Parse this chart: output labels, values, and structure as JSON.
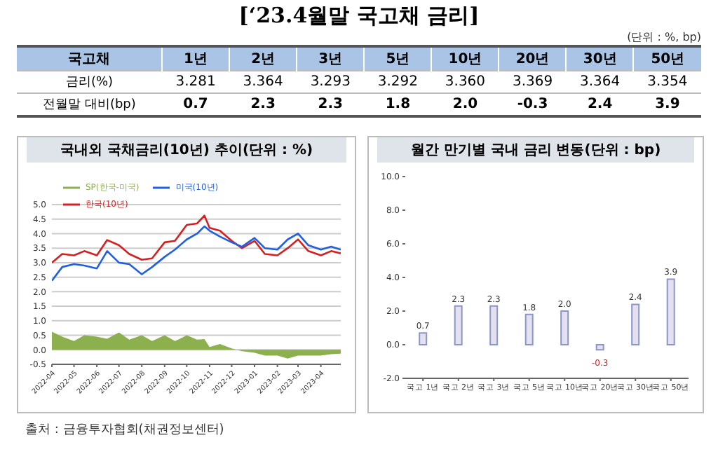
{
  "chart_data": [
    {
      "type": "other",
      "title": "[‘23.4월말 국고채 금리]",
      "subtitle": "(단위 : %, bp)",
      "xlabel": "국고채",
      "categories": [
        "1년",
        "2년",
        "3년",
        "5년",
        "10년",
        "20년",
        "30년",
        "50년"
      ],
      "series": [
        {
          "name": "금리(%)",
          "values": [
            3.281,
            3.364,
            3.293,
            3.292,
            3.36,
            3.369,
            3.364,
            3.354
          ],
          "value_labels": [
            "3.281",
            "3.364",
            "3.293",
            "3.292",
            "3.360",
            "3.369",
            "3.364",
            "3.354"
          ]
        },
        {
          "name": "전월말 대비(bp)",
          "values": [
            0.7,
            2.3,
            2.3,
            1.8,
            2.0,
            -0.3,
            2.4,
            3.9
          ],
          "value_labels": [
            "0.7",
            "2.3",
            "2.3",
            "1.8",
            "2.0",
            "-0.3",
            "2.4",
            "3.9"
          ]
        }
      ],
      "data_labels": true
    },
    {
      "type": "line",
      "title": "국내외 국채금리(10년) 추이(단위 : %)",
      "x": [
        "2022-04-01",
        "2022-04-15",
        "2022-05-01",
        "2022-05-15",
        "2022-06-01",
        "2022-06-15",
        "2022-07-01",
        "2022-07-15",
        "2022-08-01",
        "2022-08-15",
        "2022-09-01",
        "2022-09-15",
        "2022-10-01",
        "2022-10-15",
        "2022-10-25",
        "2022-11-01",
        "2022-11-15",
        "2022-12-01",
        "2022-12-15",
        "2023-01-01",
        "2023-01-15",
        "2023-02-01",
        "2023-02-15",
        "2023-03-01",
        "2023-03-15",
        "2023-04-01",
        "2023-04-15",
        "2023-04-28"
      ],
      "series": [
        {
          "name": "SP(한국-미국)",
          "type": "area",
          "color": "#8db04f",
          "values": [
            0.62,
            0.45,
            0.3,
            0.5,
            0.45,
            0.38,
            0.6,
            0.35,
            0.5,
            0.3,
            0.5,
            0.3,
            0.5,
            0.35,
            0.37,
            0.1,
            0.2,
            0.05,
            -0.05,
            -0.1,
            -0.2,
            -0.2,
            -0.3,
            -0.2,
            -0.2,
            -0.2,
            -0.15,
            -0.13
          ]
        },
        {
          "name": "한국(10년)",
          "color": "#d42020",
          "values": [
            3.0,
            3.3,
            3.25,
            3.4,
            3.25,
            3.78,
            3.6,
            3.3,
            3.1,
            3.15,
            3.7,
            3.75,
            4.3,
            4.35,
            4.62,
            4.2,
            4.1,
            3.75,
            3.5,
            3.75,
            3.3,
            3.25,
            3.5,
            3.8,
            3.4,
            3.25,
            3.4,
            3.32
          ]
        },
        {
          "name": "미국(10년)",
          "color": "#2060e0",
          "values": [
            2.38,
            2.85,
            2.95,
            2.9,
            2.8,
            3.4,
            3.0,
            2.95,
            2.6,
            2.85,
            3.2,
            3.45,
            3.8,
            4.0,
            4.25,
            4.1,
            3.9,
            3.7,
            3.55,
            3.85,
            3.5,
            3.45,
            3.8,
            4.0,
            3.6,
            3.45,
            3.55,
            3.45
          ]
        }
      ],
      "xlim": [
        "2022-04-01",
        "2023-04-28"
      ],
      "xticks": [
        {
          "value": "2022-04-01",
          "label": "2022-04"
        },
        {
          "value": "2022-05-01",
          "label": "2022-05"
        },
        {
          "value": "2022-06-01",
          "label": "2022-06"
        },
        {
          "value": "2022-07-01",
          "label": "2022-07"
        },
        {
          "value": "2022-08-01",
          "label": "2022-08"
        },
        {
          "value": "2022-09-01",
          "label": "2022-09"
        },
        {
          "value": "2022-10-01",
          "label": "2022-10"
        },
        {
          "value": "2022-11-01",
          "label": "2022-11"
        },
        {
          "value": "2022-12-01",
          "label": "2022-12"
        },
        {
          "value": "2023-01-01",
          "label": "2023-01"
        },
        {
          "value": "2023-02-01",
          "label": "2023-02"
        },
        {
          "value": "2023-03-01",
          "label": "2023-03"
        },
        {
          "value": "2023-04-01",
          "label": "2023-04"
        }
      ],
      "ylim": [
        -0.5,
        5
      ],
      "yticks": [
        {
          "value": -0.5,
          "label": "-0.5"
        },
        {
          "value": 0,
          "label": "0.0"
        },
        {
          "value": 0.5,
          "label": "0.5"
        },
        {
          "value": 1,
          "label": "1.0"
        },
        {
          "value": 1.5,
          "label": "1.5"
        },
        {
          "value": 2,
          "label": "2.0"
        },
        {
          "value": 2.5,
          "label": "2.5"
        },
        {
          "value": 3,
          "label": "3.0"
        },
        {
          "value": 3.5,
          "label": "3.5"
        },
        {
          "value": 4,
          "label": "4.0"
        },
        {
          "value": 4.5,
          "label": "4.5"
        },
        {
          "value": 5,
          "label": "5.0"
        }
      ],
      "grid": "y",
      "legend": "top left",
      "marker": "none"
    },
    {
      "type": "bar",
      "title": "월간 만기별 국내 금리 변동(단위 : bp)",
      "categories": [
        "국고 1년",
        "국고 2년",
        "국고 3년",
        "국고 5년",
        "국고 10년",
        "국고 20년",
        "국고 30년",
        "국고 50년"
      ],
      "values": [
        0.7,
        2.3,
        2.3,
        1.8,
        2.0,
        -0.3,
        2.4,
        3.9
      ],
      "color": "#e4e0f0",
      "value_labels": [
        "0.7",
        "2.3",
        "2.3",
        "1.8",
        "2.0",
        "-0.3",
        "2.4",
        "3.9"
      ],
      "ylim": [
        -2,
        10
      ],
      "yticks": [
        {
          "value": -2,
          "label": "-2.0"
        },
        {
          "value": 0,
          "label": "0.0"
        },
        {
          "value": 2,
          "label": "2.0"
        },
        {
          "value": 4,
          "label": "4.0"
        },
        {
          "value": 6,
          "label": "6.0"
        },
        {
          "value": 8,
          "label": "8.0"
        },
        {
          "value": 10,
          "label": "10.0"
        }
      ],
      "annotations": [
        "출처 : 금융투자협회(채권정보센터)"
      ]
    }
  ]
}
